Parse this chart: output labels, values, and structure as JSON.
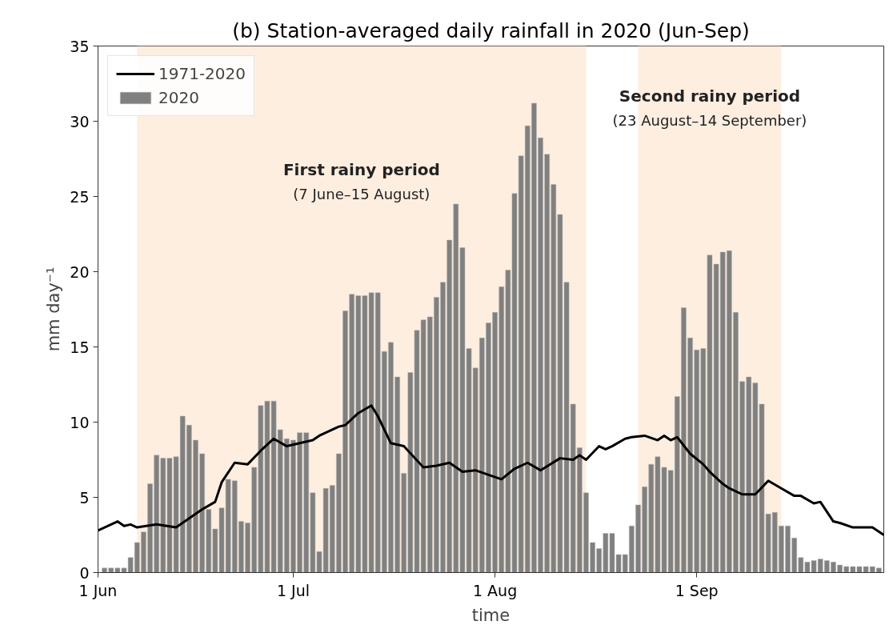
{
  "chart_data": {
    "type": "bar",
    "title": "(b) Station-averaged daily rainfall in 2020 (Jun-Sep)",
    "xlabel": "time",
    "ylabel": "mm day⁻¹",
    "x": [
      "2020-06-02",
      "2020-06-03",
      "2020-06-04",
      "2020-06-05",
      "2020-06-06",
      "2020-06-07",
      "2020-06-08",
      "2020-06-09",
      "2020-06-10",
      "2020-06-11",
      "2020-06-12",
      "2020-06-13",
      "2020-06-14",
      "2020-06-15",
      "2020-06-16",
      "2020-06-17",
      "2020-06-18",
      "2020-06-19",
      "2020-06-20",
      "2020-06-21",
      "2020-06-22",
      "2020-06-23",
      "2020-06-24",
      "2020-06-25",
      "2020-06-26",
      "2020-06-27",
      "2020-06-28",
      "2020-06-29",
      "2020-06-30",
      "2020-07-01",
      "2020-07-02",
      "2020-07-03",
      "2020-07-04",
      "2020-07-05",
      "2020-07-06",
      "2020-07-07",
      "2020-07-08",
      "2020-07-09",
      "2020-07-10",
      "2020-07-11",
      "2020-07-12",
      "2020-07-13",
      "2020-07-14",
      "2020-07-15",
      "2020-07-16",
      "2020-07-17",
      "2020-07-18",
      "2020-07-19",
      "2020-07-20",
      "2020-07-21",
      "2020-07-22",
      "2020-07-23",
      "2020-07-24",
      "2020-07-25",
      "2020-07-26",
      "2020-07-27",
      "2020-07-28",
      "2020-07-29",
      "2020-07-30",
      "2020-07-31",
      "2020-08-01",
      "2020-08-02",
      "2020-08-03",
      "2020-08-04",
      "2020-08-05",
      "2020-08-06",
      "2020-08-07",
      "2020-08-08",
      "2020-08-09",
      "2020-08-10",
      "2020-08-11",
      "2020-08-12",
      "2020-08-13",
      "2020-08-14",
      "2020-08-15",
      "2020-08-16",
      "2020-08-17",
      "2020-08-18",
      "2020-08-19",
      "2020-08-20",
      "2020-08-21",
      "2020-08-22",
      "2020-08-23",
      "2020-08-24",
      "2020-08-25",
      "2020-08-26",
      "2020-08-27",
      "2020-08-28",
      "2020-08-29",
      "2020-08-30",
      "2020-08-31",
      "2020-09-01",
      "2020-09-02",
      "2020-09-03",
      "2020-09-04",
      "2020-09-05",
      "2020-09-06",
      "2020-09-07",
      "2020-09-08",
      "2020-09-09",
      "2020-09-10",
      "2020-09-11",
      "2020-09-12",
      "2020-09-13",
      "2020-09-14",
      "2020-09-15",
      "2020-09-16",
      "2020-09-17",
      "2020-09-18",
      "2020-09-19",
      "2020-09-20",
      "2020-09-21",
      "2020-09-22",
      "2020-09-23",
      "2020-09-24",
      "2020-09-25",
      "2020-09-26",
      "2020-09-27",
      "2020-09-28",
      "2020-09-29"
    ],
    "series": [
      {
        "name": "1971-2020",
        "type": "line",
        "color": "#000000",
        "x": [
          "2020-06-01",
          "2020-06-04",
          "2020-06-05",
          "2020-06-06",
          "2020-06-07",
          "2020-06-10",
          "2020-06-13",
          "2020-06-15",
          "2020-06-17",
          "2020-06-19",
          "2020-06-20",
          "2020-06-22",
          "2020-06-24",
          "2020-06-26",
          "2020-06-28",
          "2020-06-30",
          "2020-07-02",
          "2020-07-04",
          "2020-07-05",
          "2020-07-08",
          "2020-07-09",
          "2020-07-11",
          "2020-07-13",
          "2020-07-14",
          "2020-07-16",
          "2020-07-18",
          "2020-07-21",
          "2020-07-23",
          "2020-07-25",
          "2020-07-27",
          "2020-07-29",
          "2020-07-31",
          "2020-08-02",
          "2020-08-04",
          "2020-08-06",
          "2020-08-08",
          "2020-08-11",
          "2020-08-13",
          "2020-08-14",
          "2020-08-15",
          "2020-08-17",
          "2020-08-18",
          "2020-08-19",
          "2020-08-21",
          "2020-08-22",
          "2020-08-24",
          "2020-08-26",
          "2020-08-27",
          "2020-08-28",
          "2020-08-29",
          "2020-08-31",
          "2020-09-02",
          "2020-09-03",
          "2020-09-05",
          "2020-09-06",
          "2020-09-08",
          "2020-09-10",
          "2020-09-12",
          "2020-09-14",
          "2020-09-16",
          "2020-09-17",
          "2020-09-19",
          "2020-09-20",
          "2020-09-22",
          "2020-09-23",
          "2020-09-25",
          "2020-09-28",
          "2020-09-29T18:00"
        ],
        "values": [
          2.8,
          3.4,
          3.1,
          3.2,
          3.0,
          3.2,
          3.0,
          3.6,
          4.2,
          4.7,
          6.0,
          7.3,
          7.2,
          8.1,
          8.9,
          8.4,
          8.6,
          8.8,
          9.1,
          9.7,
          9.8,
          10.6,
          11.1,
          10.4,
          8.6,
          8.4,
          7.0,
          7.1,
          7.3,
          6.7,
          6.8,
          6.5,
          6.2,
          6.9,
          7.3,
          6.8,
          7.6,
          7.5,
          7.8,
          7.5,
          8.4,
          8.2,
          8.4,
          8.9,
          9.0,
          9.1,
          8.8,
          9.1,
          8.8,
          9.0,
          7.9,
          7.2,
          6.7,
          5.9,
          5.6,
          5.2,
          5.2,
          6.1,
          5.6,
          5.1,
          5.1,
          4.6,
          4.7,
          3.4,
          3.3,
          3.0,
          3.0,
          2.5
        ]
      },
      {
        "name": "2020",
        "color": "#808080",
        "values": [
          0.3,
          0.3,
          0.3,
          0.3,
          1.0,
          2.0,
          2.7,
          5.9,
          7.8,
          7.6,
          7.6,
          7.7,
          10.4,
          9.8,
          8.8,
          7.9,
          4.2,
          2.9,
          4.3,
          6.2,
          6.1,
          3.4,
          3.3,
          7.0,
          11.1,
          11.4,
          11.4,
          9.5,
          8.9,
          8.8,
          9.3,
          9.3,
          5.3,
          1.4,
          5.6,
          5.8,
          7.9,
          17.4,
          18.5,
          18.4,
          18.4,
          18.6,
          18.6,
          14.7,
          15.3,
          13.0,
          6.6,
          13.3,
          16.1,
          16.8,
          17.0,
          18.3,
          19.3,
          22.1,
          24.5,
          21.6,
          14.9,
          13.6,
          15.6,
          16.6,
          17.3,
          19.0,
          20.1,
          25.2,
          27.7,
          29.7,
          31.2,
          28.9,
          27.8,
          25.8,
          23.8,
          19.3,
          11.2,
          8.3,
          5.3,
          2.0,
          1.6,
          2.6,
          2.6,
          1.2,
          1.2,
          3.1,
          4.5,
          5.7,
          7.2,
          7.7,
          7.0,
          6.8,
          11.7,
          17.6,
          15.6,
          14.8,
          14.9,
          21.1,
          20.5,
          21.3,
          21.4,
          17.3,
          12.7,
          13.0,
          12.6,
          11.2,
          3.9,
          4.0,
          3.1,
          3.1,
          2.3,
          1.0,
          0.7,
          0.8,
          0.9,
          0.8,
          0.7,
          0.5,
          0.4,
          0.4,
          0.4,
          0.4,
          0.4,
          0.3
        ]
      }
    ],
    "bands": [
      {
        "axis": "x",
        "from": "2020-06-07",
        "to": "2020-08-15",
        "label": "First rainy period\n(7 June–15 August)",
        "color": "#fdeee0"
      },
      {
        "axis": "x",
        "from": "2020-08-23",
        "to": "2020-09-14",
        "label": "Second rainy period\n(23 August–14 September)",
        "color": "#fdeee0"
      }
    ],
    "xlim": [
      "2020-06-01",
      "2020-09-29T18:00"
    ],
    "xticks": [
      {
        "value": "2020-06-01",
        "label": "1 Jun"
      },
      {
        "value": "2020-07-01",
        "label": "1 Jul"
      },
      {
        "value": "2020-08-01",
        "label": "1 Aug"
      },
      {
        "value": "2020-09-01",
        "label": "1 Sep"
      }
    ],
    "ylim": [
      0,
      35
    ],
    "yticks": [
      0,
      5,
      10,
      15,
      20,
      25,
      30,
      35
    ],
    "grid": false,
    "legend": "top left"
  }
}
